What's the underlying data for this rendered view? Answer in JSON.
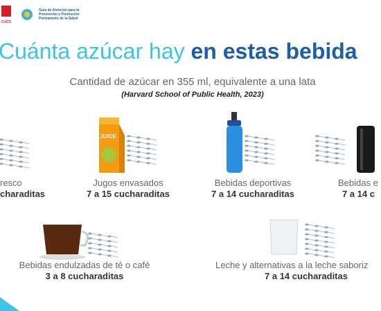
{
  "header": {
    "logo_label": "CUCS",
    "guide_lines": [
      "Guía de Atención para la",
      "Prevención y Promoción",
      "Permanente de la Salud"
    ]
  },
  "title": {
    "light": "Cuánta azúcar hay",
    "bold": "en estas bebida"
  },
  "subtitle": "Cantidad de azúcar en 355 ml, equivalente a una lata",
  "source": "(Harvard School of Public Health, 2023)",
  "carton_label": "JUICE",
  "items": [
    {
      "name": "resco",
      "amount": "charaditas"
    },
    {
      "name": "Jugos envasados",
      "amount": "7 a 15 cucharaditas"
    },
    {
      "name": "Bebidas deportivas",
      "amount": "7 a 14 cucharaditas"
    },
    {
      "name": "Bebidas e",
      "amount": "7 a 14 c"
    },
    {
      "name": "Bebidas endulzadas de té o café",
      "amount": "3 a 8 cucharaditas"
    },
    {
      "name": "Leche y alternativas a la leche saboriz",
      "amount": "7 a 14 cucharaditas"
    }
  ]
}
